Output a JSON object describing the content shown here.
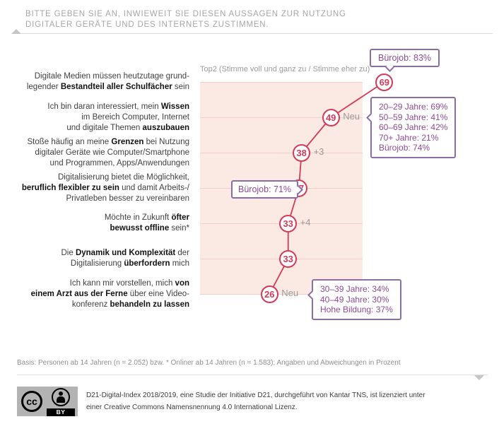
{
  "header": {
    "lines": [
      "BITTE GEBEN SIE AN, INWIEWEIT SIE DIESEN AUSSAGEN ZUR NUTZUNG",
      "DIGITALER GERÄTE UND DES INTERNETS ZUSTIMMEN."
    ]
  },
  "chart_data": {
    "type": "line",
    "title": "Top2 (Stimme voll und ganz zu / Stimme eher zu)",
    "categories": [
      "Digitale Medien müssen heutzutage grundlegender Bestandteil aller Schulfächer sein",
      "Ich bin daran interessiert, mein Wissen im Bereich Computer, Internet und digitale Themen auszubauen",
      "Stoße häufig an meine Grenzen bei Nutzung digitaler Geräte wie Computer/Smartphone und Programmen, Apps/Anwendungen",
      "Digitalisierung bietet die Möglichkeit, beruflich flexibler zu sein und damit Arbeits-/Privatleben besser zu vereinbaren",
      "Möchte in Zukunft öfter bewusst offline sein*",
      "Die Dynamik und Komplexität der Digitalisierung überfordern mich",
      "Ich kann mir vorstellen, mich von einem Arzt aus der Ferne über eine Videokonferenz behandeln zu lassen"
    ],
    "values": [
      69,
      49,
      38,
      37,
      33,
      33,
      26
    ],
    "point_notes": [
      "",
      "Neu",
      "+3",
      "",
      "+4",
      "",
      "Neu"
    ],
    "xlim": [
      0,
      61
    ],
    "grid": true,
    "unit": "Prozent",
    "legend_position": "top"
  },
  "statements": [
    {
      "segments": [
        {
          "t": "Digitale Medien müssen heutzutage grund-"
        },
        {
          "br": true
        },
        {
          "t": "legender "
        },
        {
          "t": "Bestandteil aller Schulfächer",
          "b": true
        },
        {
          "t": " sein"
        }
      ]
    },
    {
      "segments": [
        {
          "t": "Ich bin daran interessiert, mein "
        },
        {
          "t": "Wissen",
          "b": true
        },
        {
          "br": true
        },
        {
          "t": "im Bereich Computer, Internet"
        },
        {
          "br": true
        },
        {
          "t": "und digitale Themen "
        },
        {
          "t": "auszubauen",
          "b": true
        }
      ]
    },
    {
      "segments": [
        {
          "t": "Stoße häufig an meine "
        },
        {
          "t": "Grenzen",
          "b": true
        },
        {
          "t": " bei Nutzung"
        },
        {
          "br": true
        },
        {
          "t": "digitaler Geräte wie Computer/Smartphone"
        },
        {
          "br": true
        },
        {
          "t": "und Programmen, Apps/Anwendungen"
        }
      ]
    },
    {
      "segments": [
        {
          "t": "Digitalisierung bietet die Möglichkeit,"
        },
        {
          "br": true
        },
        {
          "t": "beruflich flexibler zu sein",
          "b": true
        },
        {
          "t": " und damit Arbeits-/"
        },
        {
          "br": true
        },
        {
          "t": "Privatleben besser zu vereinbaren"
        }
      ]
    },
    {
      "segments": [
        {
          "t": "Möchte in Zukunft "
        },
        {
          "t": "öfter",
          "b": true
        },
        {
          "br": true
        },
        {
          "t": "bewusst offline",
          "b": true
        },
        {
          "t": " sein*"
        }
      ]
    },
    {
      "segments": [
        {
          "t": "Die "
        },
        {
          "t": "Dynamik und Komplexität",
          "b": true
        },
        {
          "t": " der"
        },
        {
          "br": true
        },
        {
          "t": "Digitalisierung "
        },
        {
          "t": "überfordern",
          "b": true
        },
        {
          "t": " mich"
        }
      ]
    },
    {
      "segments": [
        {
          "t": "Ich kann mir vorstellen, mich "
        },
        {
          "t": "von",
          "b": true
        },
        {
          "br": true
        },
        {
          "t": "einem Arzt aus der Ferne",
          "b": true
        },
        {
          "t": " über eine Video-"
        },
        {
          "br": true
        },
        {
          "t": "konferenz "
        },
        {
          "t": "behandeln zu lassen",
          "b": true
        }
      ]
    }
  ],
  "annotations": {
    "top_box": {
      "text": "Bürojob: 83%"
    },
    "box_49": {
      "lines": [
        "20–29 Jahre: 69%",
        "50–59 Jahre: 41%",
        "60–69 Jahre: 42%",
        "70+ Jahre: 21%",
        "Bürojob: 74%"
      ]
    },
    "box_37": {
      "text": "Bürojob: 71%"
    },
    "box_26": {
      "lines": [
        "30–39 Jahre: 34%",
        "40–49 Jahre: 30%",
        "Hohe Bildung: 37%"
      ]
    }
  },
  "footer": {
    "basis": "Basis: Personen ab 14 Jahren (n = 2.052) bzw. * Onliner ab 14 Jahren (n = 1.583); Angaben und Abweichungen in Prozent",
    "license_lines": [
      "D21-Digital-Index 2018/2019, eine Studie der Initiative D21, durchgeführt von Kantar TNS, ist lizenziert unter",
      "einer Creative Commons Namensnennung 4.0 International Lizenz."
    ],
    "cc_badge": {
      "cc": "cc",
      "by": "BY"
    }
  },
  "colors": {
    "accent_red": "#d23b58",
    "chart_bg": "#fbe9e3",
    "gridline": "#f3cdc6",
    "purple_border": "#8a6da6",
    "purple_text": "#8d4a92",
    "note_gray": "#9b9b9b"
  }
}
